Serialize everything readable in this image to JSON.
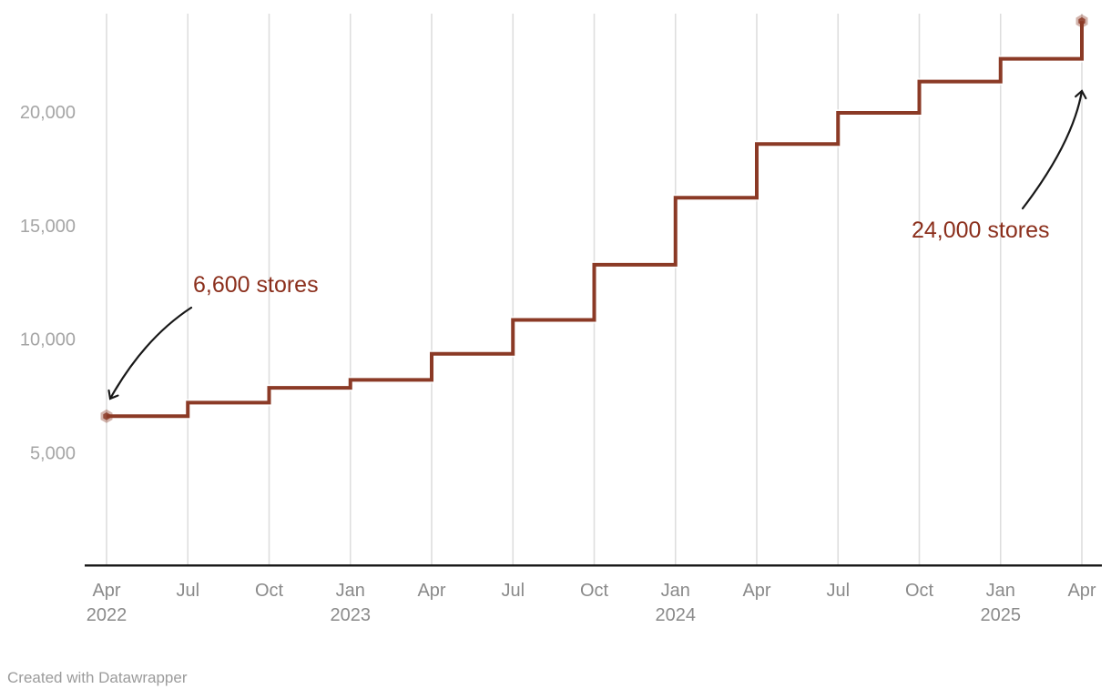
{
  "chart_data": {
    "type": "line",
    "interpolation": "step-after",
    "title": "",
    "xlabel": "",
    "ylabel": "",
    "grid": "vertical-only",
    "legend": "none",
    "ylim": [
      0,
      24500
    ],
    "x": [
      "Apr 2022",
      "Jul 2022",
      "Oct 2022",
      "Jan 2023",
      "Apr 2023",
      "Jul 2023",
      "Oct 2023",
      "Jan 2024",
      "Apr 2024",
      "Jul 2024",
      "Oct 2024",
      "Jan 2025",
      "Apr 2025"
    ],
    "x_tick_labels": [
      {
        "month": "Apr",
        "year": "2022"
      },
      {
        "month": "Jul",
        "year": ""
      },
      {
        "month": "Oct",
        "year": ""
      },
      {
        "month": "Jan",
        "year": "2023"
      },
      {
        "month": "Apr",
        "year": ""
      },
      {
        "month": "Jul",
        "year": ""
      },
      {
        "month": "Oct",
        "year": ""
      },
      {
        "month": "Jan",
        "year": "2024"
      },
      {
        "month": "Apr",
        "year": ""
      },
      {
        "month": "Jul",
        "year": ""
      },
      {
        "month": "Oct",
        "year": ""
      },
      {
        "month": "Jan",
        "year": "2025"
      },
      {
        "month": "Apr",
        "year": ""
      }
    ],
    "series": [
      {
        "name": "stores",
        "values": [
          6600,
          7200,
          7850,
          8200,
          9350,
          10840,
          13270,
          16220,
          18590,
          19960,
          21340,
          22340,
          24000
        ]
      }
    ],
    "y_ticks": [
      {
        "value": 5000,
        "label": "5,000"
      },
      {
        "value": 10000,
        "label": "10,000"
      },
      {
        "value": 15000,
        "label": "15,000"
      },
      {
        "value": 20000,
        "label": "20,000"
      }
    ],
    "annotations": [
      {
        "text": "6,600 stores",
        "anchor_point": "Apr 2022"
      },
      {
        "text": "24,000 stores",
        "anchor_point": "Apr 2025"
      }
    ]
  },
  "colors": {
    "line": "#8B3A26",
    "marker": "#8B3A26",
    "annotation_text": "#8B2F1C",
    "arrow": "#181818",
    "gridline": "#dedede",
    "axis_baseline": "#151515",
    "x_tick_text": "#8a8a8a",
    "y_tick_text": "#a5a5a5",
    "background": "#ffffff"
  },
  "footer": {
    "attribution": "Created with Datawrapper"
  }
}
